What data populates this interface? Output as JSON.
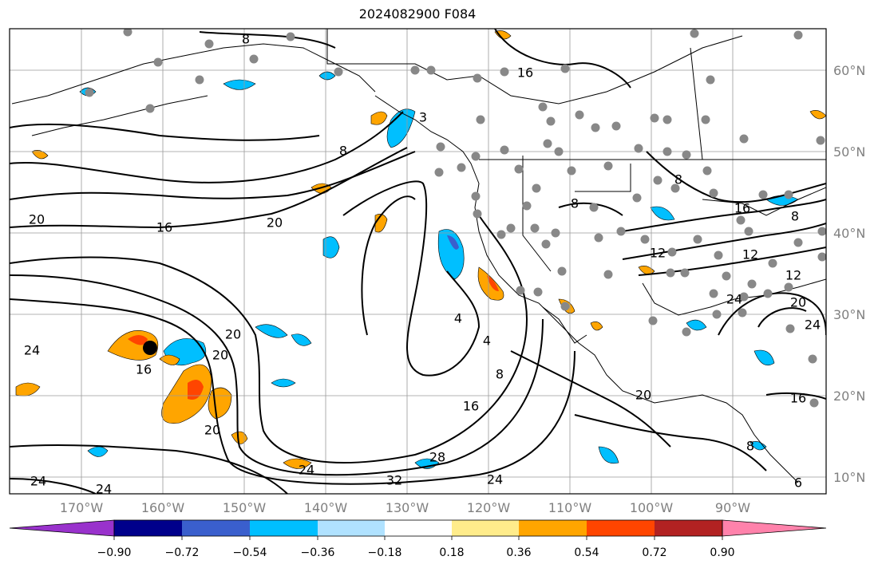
{
  "title": "2024082900 F084",
  "map": {
    "lon_labels": [
      "170°W",
      "160°W",
      "150°W",
      "140°W",
      "130°W",
      "120°W",
      "110°W",
      "100°W",
      "90°W"
    ],
    "lat_labels": [
      "60°N",
      "50°N",
      "40°N",
      "30°N",
      "20°N",
      "10°N"
    ],
    "contour_labels": [
      "8",
      "16",
      "20",
      "16",
      "20",
      "8",
      "24",
      "20",
      "20",
      "16",
      "20",
      "8",
      "4",
      "4",
      "8",
      "16",
      "28",
      "32",
      "24",
      "24",
      "24",
      "24",
      "8",
      "16",
      "8",
      "12",
      "12",
      "12",
      "20",
      "24",
      "16",
      "20",
      "24",
      "3",
      "8",
      "6"
    ],
    "marker": "storm-center-dot",
    "colors": {
      "contour": "#000000",
      "station": "#888888",
      "grid": "#9a9a9a",
      "land": "#000000"
    }
  },
  "colorbar": {
    "tick_labels": [
      "−0.90",
      "−0.72",
      "−0.54",
      "−0.36",
      "−0.18",
      "0.18",
      "0.36",
      "0.54",
      "0.72",
      "0.90"
    ],
    "colors": [
      "#9932cc",
      "#00008b",
      "#3a5fcd",
      "#00bfff",
      "#b0e2ff",
      "#ffffff",
      "#ffec8b",
      "#ffa500",
      "#ff4500",
      "#b22222",
      "#ff82ab"
    ]
  }
}
